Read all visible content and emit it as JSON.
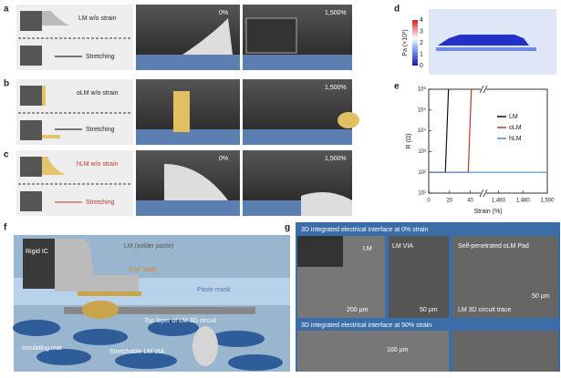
{
  "panels": {
    "a": {
      "label": "a",
      "schematic_top": "LM w/o strain",
      "schematic_bottom": "Stretching",
      "image1": "0%",
      "image2": "1,500%"
    },
    "b": {
      "label": "b",
      "schematic_top": "oLM w/o strain",
      "schematic_bottom": "Stretching",
      "image2": "1,500%"
    },
    "c": {
      "label": "c",
      "schematic_top": "hLM w/o strain",
      "schematic_bottom": "Stretching",
      "image1": "0%",
      "image2": "1,500%"
    },
    "d": {
      "label": "d",
      "colorbar_label": "Pa (×10³)",
      "colorbar_ticks": [
        "0",
        "1",
        "2",
        "3",
        "4"
      ]
    },
    "f": {
      "label": "f",
      "rigid_ic": "Rigid IC",
      "lm": "LM (solder paste)",
      "olm": "oLM (pad)",
      "paste_mask": "Paste mask",
      "top_layer": "Top layer of LM 3D circuit",
      "insulating_mat": "Insulating mat",
      "via": "Stretchable LM VIA"
    },
    "g": {
      "label": "g",
      "title_top": "3D integrated electrical interface at 0% strain",
      "lm": "LM",
      "lm_via": "LM VIA",
      "scale1": "200 µm",
      "scale2": "50 µm",
      "pad": "Self-penetrated oLM Pad",
      "trace": "LM 3D circuit trace",
      "scale3": "50 µm",
      "title_bottom": "3D integrated electrical interface at 50% strain",
      "scale4": "100 µm"
    }
  },
  "chart_data": {
    "type": "line",
    "label": "e",
    "xlabel": "Strain (%)",
    "ylabel": "R (Ω)",
    "xlim": [
      0,
      1500
    ],
    "xbreak": [
      50,
      1450
    ],
    "xticks": [
      0,
      20,
      40,
      {
        "value": 1460,
        "label": "1,460"
      },
      {
        "value": 1480,
        "label": "1,480"
      },
      {
        "value": 1500,
        "label": "1,500"
      }
    ],
    "ylim": [
      10,
      1000000
    ],
    "log_y": true,
    "yticks": [
      {
        "value": 10,
        "label": "10¹"
      },
      {
        "value": 100,
        "label": "10²"
      },
      {
        "value": 1000,
        "label": "10³"
      },
      {
        "value": 10000,
        "label": "10⁴"
      },
      {
        "value": 100000,
        "label": "10⁵"
      },
      {
        "value": 1000000,
        "label": "10⁶"
      }
    ],
    "series": [
      {
        "name": "LM",
        "color": "#111111",
        "x": [
          0,
          16,
          19
        ],
        "values": [
          100,
          100,
          1000000
        ]
      },
      {
        "name": "oLM",
        "color": "#c0392b",
        "x": [
          0,
          38,
          41
        ],
        "values": [
          100,
          100,
          1000000
        ]
      },
      {
        "name": "hLM",
        "color": "#4a90c2",
        "x": [
          0,
          1500
        ],
        "values": [
          100,
          100
        ]
      }
    ]
  }
}
